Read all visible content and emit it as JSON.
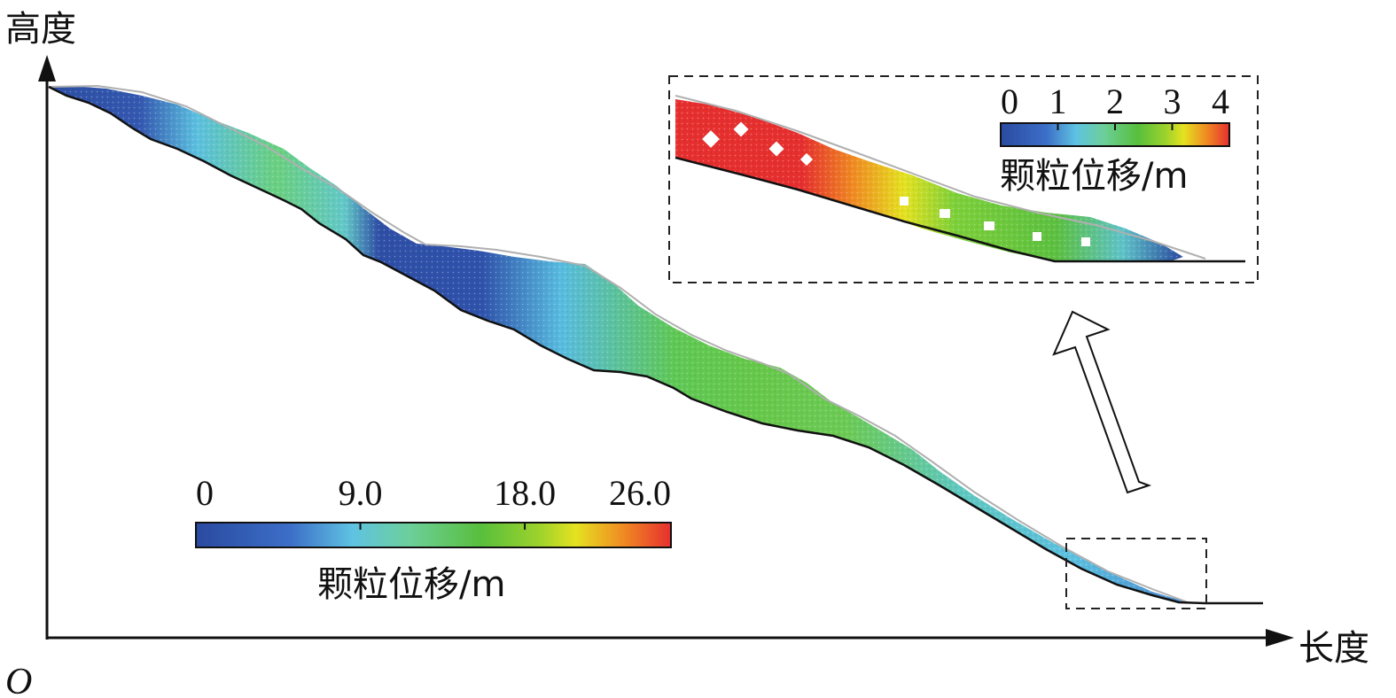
{
  "axes": {
    "y_label": "高度",
    "x_label": "长度",
    "origin_label": "O"
  },
  "main_legend": {
    "title": "颗粒位移/m",
    "ticks": [
      "0",
      "9.0",
      "18.0",
      "26.0"
    ],
    "min": 0,
    "max": 26.0
  },
  "inset_legend": {
    "title": "颗粒位移/m",
    "ticks": [
      "0",
      "1",
      "2",
      "3",
      "4"
    ],
    "min": 0,
    "max": 4
  },
  "colormap": [
    "#2a4a9f",
    "#3b6fc8",
    "#5fc0e0",
    "#7ed1b0",
    "#5cc040",
    "#8bd030",
    "#e8e020",
    "#f08020",
    "#e83030"
  ],
  "colors": {
    "terrain_line": "#111111",
    "original_surface": "#b0b0b0",
    "inset_box": "#222222"
  }
}
